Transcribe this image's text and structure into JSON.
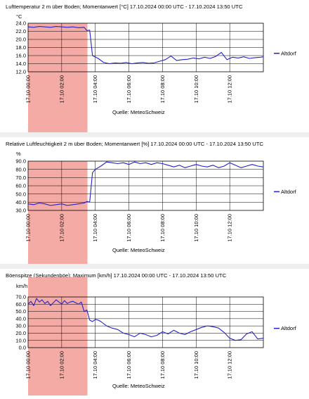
{
  "chart_data": [
    {
      "type": "line",
      "title": "Lufttemperatur 2 m über Boden; Momentanwert [°C]  17.10.2024 00:00 UTC - 17.10.2024 13:50 UTC",
      "ylabel": "°C",
      "yticks": [
        "24.0",
        "22.0",
        "20.0",
        "18.0",
        "16.0",
        "14.0",
        "12.0"
      ],
      "ylim": [
        12,
        24
      ],
      "xlim": [
        0,
        840
      ],
      "xtick_labels": [
        "17.10 00:00",
        "17.10 02:00",
        "17.10 04:00",
        "17.10 06:00",
        "17.10 08:00",
        "17.10 10:00",
        "17.10 12:00"
      ],
      "xtick_minutes": [
        0,
        120,
        240,
        360,
        480,
        600,
        720
      ],
      "highlight": {
        "from": 0,
        "to": 212,
        "color": "#f4a7a0"
      },
      "source": "Quelle: MeteoSchweiz",
      "series": [
        {
          "name": "Altdorf",
          "color": "#2222cc",
          "x": [
            0,
            20,
            40,
            60,
            80,
            100,
            120,
            140,
            160,
            180,
            200,
            210,
            220,
            230,
            250,
            270,
            290,
            310,
            330,
            350,
            370,
            390,
            410,
            430,
            450,
            470,
            490,
            510,
            530,
            550,
            570,
            590,
            610,
            630,
            650,
            670,
            690,
            710,
            730,
            750,
            770,
            790,
            810,
            830,
            840
          ],
          "values": [
            23.1,
            23.0,
            23.2,
            23.1,
            23.0,
            23.2,
            23.1,
            23.0,
            23.1,
            22.9,
            23.0,
            22.2,
            22.3,
            16.0,
            15.3,
            14.3,
            14.0,
            14.2,
            14.1,
            14.3,
            14.0,
            14.2,
            14.3,
            14.1,
            14.2,
            14.6,
            15.0,
            15.9,
            14.8,
            15.0,
            15.1,
            15.4,
            15.2,
            15.6,
            15.3,
            15.8,
            16.8,
            15.0,
            15.6,
            15.4,
            15.7,
            15.3,
            15.5,
            15.6,
            15.7
          ]
        }
      ]
    },
    {
      "type": "line",
      "title": "Relative Luftfeuchtigkeit 2 m über Boden; Momentanwert [%]  17.10.2024 00:00 UTC - 17.10.2024 13:50 UTC",
      "ylabel": "%",
      "yticks": [
        "90.0",
        "80.0",
        "70.0",
        "60.0",
        "50.0",
        "40.0",
        "30.0"
      ],
      "ylim": [
        30,
        90
      ],
      "xlim": [
        0,
        840
      ],
      "xtick_labels": [
        "17.10 00:00",
        "17.10 02:00",
        "17.10 04:00",
        "17.10 06:00",
        "17.10 08:00",
        "17.10 10:00",
        "17.10 12:00"
      ],
      "xtick_minutes": [
        0,
        120,
        240,
        360,
        480,
        600,
        720
      ],
      "highlight": {
        "from": 0,
        "to": 212,
        "color": "#f4a7a0"
      },
      "source": "Quelle: MeteoSchweiz",
      "series": [
        {
          "name": "Altdorf",
          "color": "#2222cc",
          "x": [
            0,
            20,
            40,
            60,
            80,
            100,
            120,
            140,
            160,
            180,
            200,
            210,
            220,
            230,
            240,
            260,
            280,
            300,
            320,
            340,
            360,
            380,
            400,
            420,
            440,
            460,
            480,
            500,
            520,
            540,
            560,
            580,
            600,
            620,
            640,
            660,
            680,
            700,
            720,
            740,
            760,
            780,
            800,
            820,
            840
          ],
          "values": [
            38,
            37,
            39,
            38,
            36,
            37,
            38,
            36,
            37,
            38,
            39,
            41,
            40,
            76,
            80,
            84,
            89,
            88,
            87,
            88,
            86,
            89,
            87,
            88,
            86,
            88,
            87,
            85,
            83,
            85,
            82,
            84,
            86,
            84,
            83,
            85,
            82,
            84,
            88,
            85,
            82,
            84,
            86,
            84,
            83
          ]
        }
      ]
    },
    {
      "type": "line",
      "title": "Böenspitze (Sekundenböe); Maximum [km/h]  17.10.2024 00:00 UTC - 17.10.2024 13:50 UTC",
      "ylabel": "km/h",
      "yticks": [
        "70.0",
        "60.0",
        "50.0",
        "40.0",
        "30.0",
        "20.0",
        "10.0",
        "0.0"
      ],
      "ylim": [
        0,
        70
      ],
      "xlim": [
        0,
        840
      ],
      "xtick_labels": [
        "17.10 00:00",
        "17.10 02:00",
        "17.10 04:00",
        "17.10 06:00",
        "17.10 08:00",
        "17.10 10:00",
        "17.10 12:00"
      ],
      "xtick_minutes": [
        0,
        120,
        240,
        360,
        480,
        600,
        720
      ],
      "highlight": {
        "from": 0,
        "to": 212,
        "color": "#f4a7a0"
      },
      "source": "Quelle: MeteoSchweiz",
      "series": [
        {
          "name": "Altdorf",
          "color": "#2222cc",
          "x": [
            0,
            10,
            20,
            30,
            40,
            50,
            60,
            70,
            80,
            90,
            100,
            110,
            120,
            130,
            140,
            150,
            160,
            170,
            180,
            190,
            200,
            210,
            220,
            230,
            240,
            250,
            260,
            280,
            300,
            320,
            340,
            360,
            380,
            400,
            420,
            440,
            460,
            480,
            500,
            520,
            540,
            560,
            580,
            600,
            620,
            640,
            660,
            680,
            700,
            720,
            740,
            760,
            780,
            800,
            820,
            840
          ],
          "values": [
            60,
            64,
            58,
            68,
            63,
            66,
            61,
            64,
            58,
            62,
            66,
            63,
            60,
            65,
            61,
            63,
            64,
            62,
            60,
            63,
            50,
            52,
            38,
            36,
            39,
            38,
            36,
            30,
            27,
            25,
            20,
            18,
            15,
            20,
            18,
            15,
            17,
            22,
            19,
            24,
            20,
            18,
            22,
            25,
            28,
            30,
            29,
            27,
            21,
            13,
            10,
            11,
            19,
            22,
            12,
            13
          ]
        }
      ]
    }
  ]
}
